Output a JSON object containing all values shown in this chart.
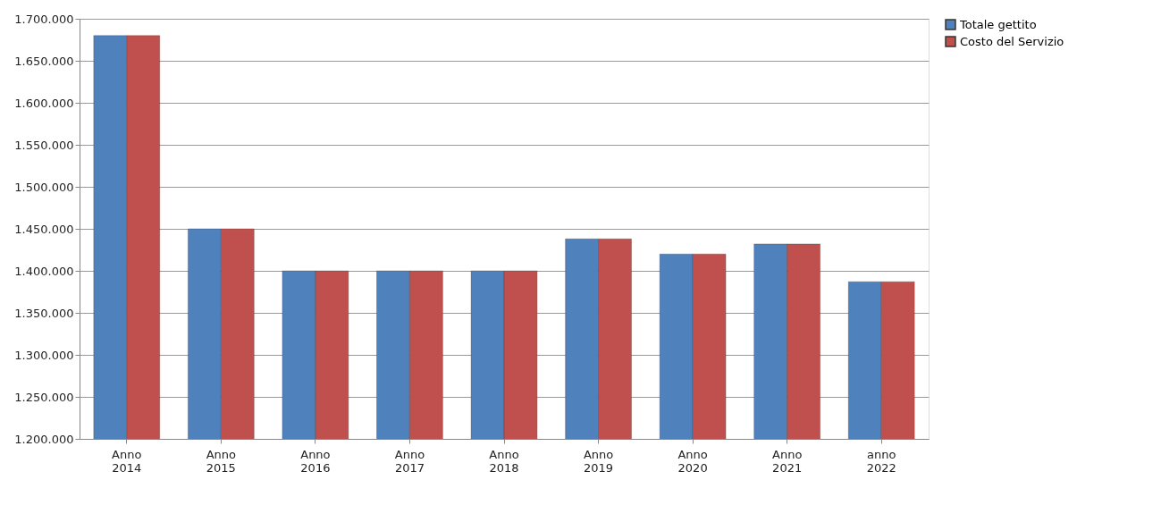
{
  "chart_data": {
    "type": "bar",
    "categories": [
      "Anno 2014",
      "Anno 2015",
      "Anno 2016",
      "Anno 2017",
      "Anno 2018",
      "Anno 2019",
      "Anno 2020",
      "Anno 2021",
      "anno 2022"
    ],
    "series": [
      {
        "name": "Totale gettito",
        "color": "#4f81bd",
        "values": [
          1680000,
          1450000,
          1400000,
          1400000,
          1400000,
          1438000,
          1420000,
          1432000,
          1387000
        ]
      },
      {
        "name": "Costo del Servizio",
        "color": "#c0504d",
        "values": [
          1680000,
          1450000,
          1400000,
          1400000,
          1400000,
          1438000,
          1420000,
          1432000,
          1387000
        ]
      }
    ],
    "ylim": [
      1200000,
      1700000
    ],
    "yticks": [
      {
        "value": 1200000,
        "label": "1.200.000"
      },
      {
        "value": 1250000,
        "label": "1.250.000"
      },
      {
        "value": 1300000,
        "label": "1.300.000"
      },
      {
        "value": 1350000,
        "label": "1.350.000"
      },
      {
        "value": 1400000,
        "label": "1.400.000"
      },
      {
        "value": 1450000,
        "label": "1.450.000"
      },
      {
        "value": 1500000,
        "label": "1.500.000"
      },
      {
        "value": 1550000,
        "label": "1.550.000"
      },
      {
        "value": 1600000,
        "label": "1.600.000"
      },
      {
        "value": 1650000,
        "label": "1.650.000"
      },
      {
        "value": 1700000,
        "label": "1.700.000"
      }
    ],
    "grid": "y",
    "legend": "right"
  }
}
